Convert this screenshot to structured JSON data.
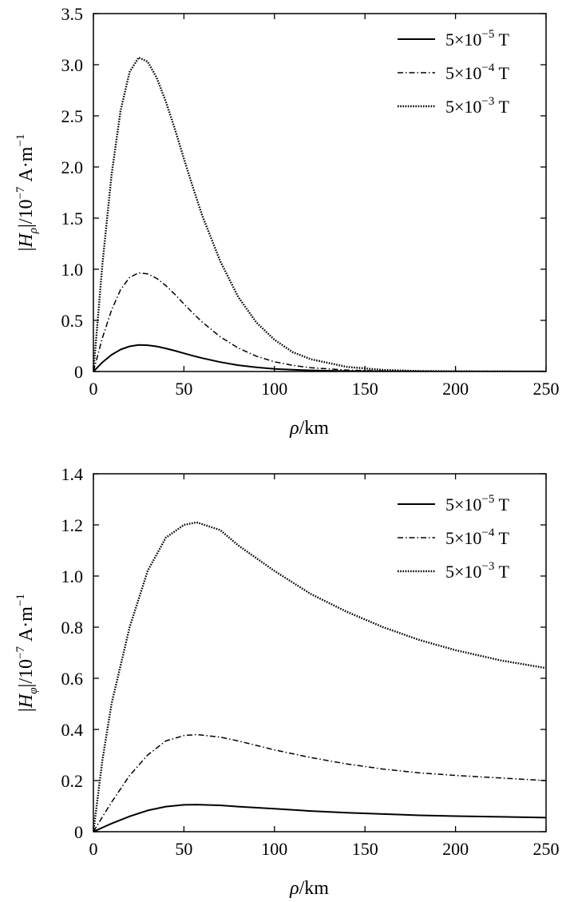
{
  "chart_data": [
    {
      "type": "line",
      "id": "top",
      "xlabel_var": "ρ",
      "xlabel_unit": "/km",
      "ylabel_prefix": "|",
      "ylabel_var": "H",
      "ylabel_sub": "ρ",
      "ylabel_mid": "|/10",
      "ylabel_exp": "−7",
      "ylabel_unit": " A·m",
      "ylabel_unit_exp": "−1",
      "xlim": [
        0,
        250
      ],
      "ylim": [
        0,
        3.5
      ],
      "xticks": [
        0,
        50,
        100,
        150,
        200,
        250
      ],
      "xtick_labels": [
        "0",
        "50",
        "100",
        "150",
        "200",
        "250"
      ],
      "yticks": [
        0,
        0.5,
        1.0,
        1.5,
        2.0,
        2.5,
        3.0,
        3.5
      ],
      "ytick_labels": [
        "0",
        "0.5",
        "1.0",
        "1.5",
        "2.0",
        "2.5",
        "3.0",
        "3.5"
      ],
      "legend_position": "top-right",
      "series": [
        {
          "name": "5×10⁻⁵ T",
          "base": "5×10",
          "exp": "−5",
          "unit": " T",
          "style": "solid",
          "x": [
            0,
            5,
            10,
            15,
            20,
            25,
            30,
            35,
            40,
            45,
            50,
            55,
            60,
            70,
            80,
            90,
            100,
            110,
            120,
            140,
            160,
            180,
            200,
            250
          ],
          "y": [
            0,
            0.09,
            0.163,
            0.215,
            0.246,
            0.26,
            0.257,
            0.245,
            0.226,
            0.203,
            0.178,
            0.154,
            0.131,
            0.092,
            0.062,
            0.041,
            0.026,
            0.017,
            0.011,
            0.004,
            0.0015,
            0.0005,
            0.0002,
            0
          ]
        },
        {
          "name": "5×10⁻⁴ T",
          "base": "5×10",
          "exp": "−4",
          "unit": " T",
          "style": "dashdot",
          "x": [
            0,
            5,
            10,
            15,
            20,
            25,
            30,
            35,
            40,
            45,
            50,
            55,
            60,
            70,
            80,
            90,
            100,
            110,
            120,
            140,
            160,
            180,
            200,
            250
          ],
          "y": [
            0,
            0.33,
            0.6,
            0.8,
            0.92,
            0.965,
            0.955,
            0.91,
            0.84,
            0.755,
            0.66,
            0.57,
            0.485,
            0.34,
            0.23,
            0.15,
            0.095,
            0.06,
            0.037,
            0.014,
            0.005,
            0.002,
            0.0006,
            0
          ]
        },
        {
          "name": "5×10⁻³ T",
          "base": "5×10",
          "exp": "−3",
          "unit": " T",
          "style": "dotted",
          "x": [
            0,
            5,
            10,
            15,
            20,
            25,
            30,
            35,
            40,
            45,
            50,
            55,
            60,
            70,
            80,
            90,
            100,
            110,
            120,
            140,
            160,
            180,
            200,
            250
          ],
          "y": [
            0,
            1.05,
            1.92,
            2.55,
            2.93,
            3.07,
            3.03,
            2.87,
            2.64,
            2.37,
            2.08,
            1.8,
            1.53,
            1.08,
            0.73,
            0.48,
            0.31,
            0.19,
            0.12,
            0.045,
            0.016,
            0.005,
            0.002,
            0
          ]
        }
      ]
    },
    {
      "type": "line",
      "id": "bottom",
      "xlabel_var": "ρ",
      "xlabel_unit": "/km",
      "ylabel_prefix": "|",
      "ylabel_var": "H",
      "ylabel_sub": "φ",
      "ylabel_mid": "|/10",
      "ylabel_exp": "−7",
      "ylabel_unit": " A·m",
      "ylabel_unit_exp": "−1",
      "xlim": [
        0,
        250
      ],
      "ylim": [
        0,
        1.4
      ],
      "xticks": [
        0,
        50,
        100,
        150,
        200,
        250
      ],
      "xtick_labels": [
        "0",
        "50",
        "100",
        "150",
        "200",
        "250"
      ],
      "yticks": [
        0,
        0.2,
        0.4,
        0.6,
        0.8,
        1.0,
        1.2,
        1.4
      ],
      "ytick_labels": [
        "0",
        "0.2",
        "0.4",
        "0.6",
        "0.8",
        "1.0",
        "1.2",
        "1.4"
      ],
      "legend_position": "top-right",
      "series": [
        {
          "name": "5×10⁻⁵ T",
          "base": "5×10",
          "exp": "−5",
          "unit": " T",
          "style": "solid",
          "x": [
            0,
            5,
            10,
            20,
            30,
            40,
            50,
            57,
            70,
            80,
            100,
            120,
            140,
            160,
            180,
            200,
            225,
            250
          ],
          "y": [
            0,
            0.016,
            0.032,
            0.06,
            0.083,
            0.098,
            0.105,
            0.106,
            0.103,
            0.098,
            0.09,
            0.081,
            0.074,
            0.069,
            0.064,
            0.061,
            0.058,
            0.055
          ]
        },
        {
          "name": "5×10⁻⁴ T",
          "base": "5×10",
          "exp": "−4",
          "unit": " T",
          "style": "dashdot",
          "x": [
            0,
            5,
            10,
            20,
            30,
            40,
            50,
            57,
            70,
            80,
            100,
            120,
            140,
            160,
            180,
            200,
            225,
            250
          ],
          "y": [
            0,
            0.058,
            0.115,
            0.22,
            0.3,
            0.355,
            0.376,
            0.38,
            0.37,
            0.355,
            0.32,
            0.29,
            0.265,
            0.245,
            0.23,
            0.22,
            0.21,
            0.2
          ]
        },
        {
          "name": "5×10⁻³ T",
          "base": "5×10",
          "exp": "−3",
          "unit": " T",
          "style": "dotted",
          "x": [
            0,
            5,
            10,
            20,
            30,
            40,
            50,
            57,
            70,
            80,
            100,
            120,
            140,
            160,
            180,
            200,
            225,
            250
          ],
          "y": [
            0,
            0.28,
            0.5,
            0.8,
            1.02,
            1.15,
            1.2,
            1.21,
            1.18,
            1.12,
            1.02,
            0.93,
            0.86,
            0.8,
            0.75,
            0.71,
            0.67,
            0.64
          ]
        }
      ]
    }
  ]
}
